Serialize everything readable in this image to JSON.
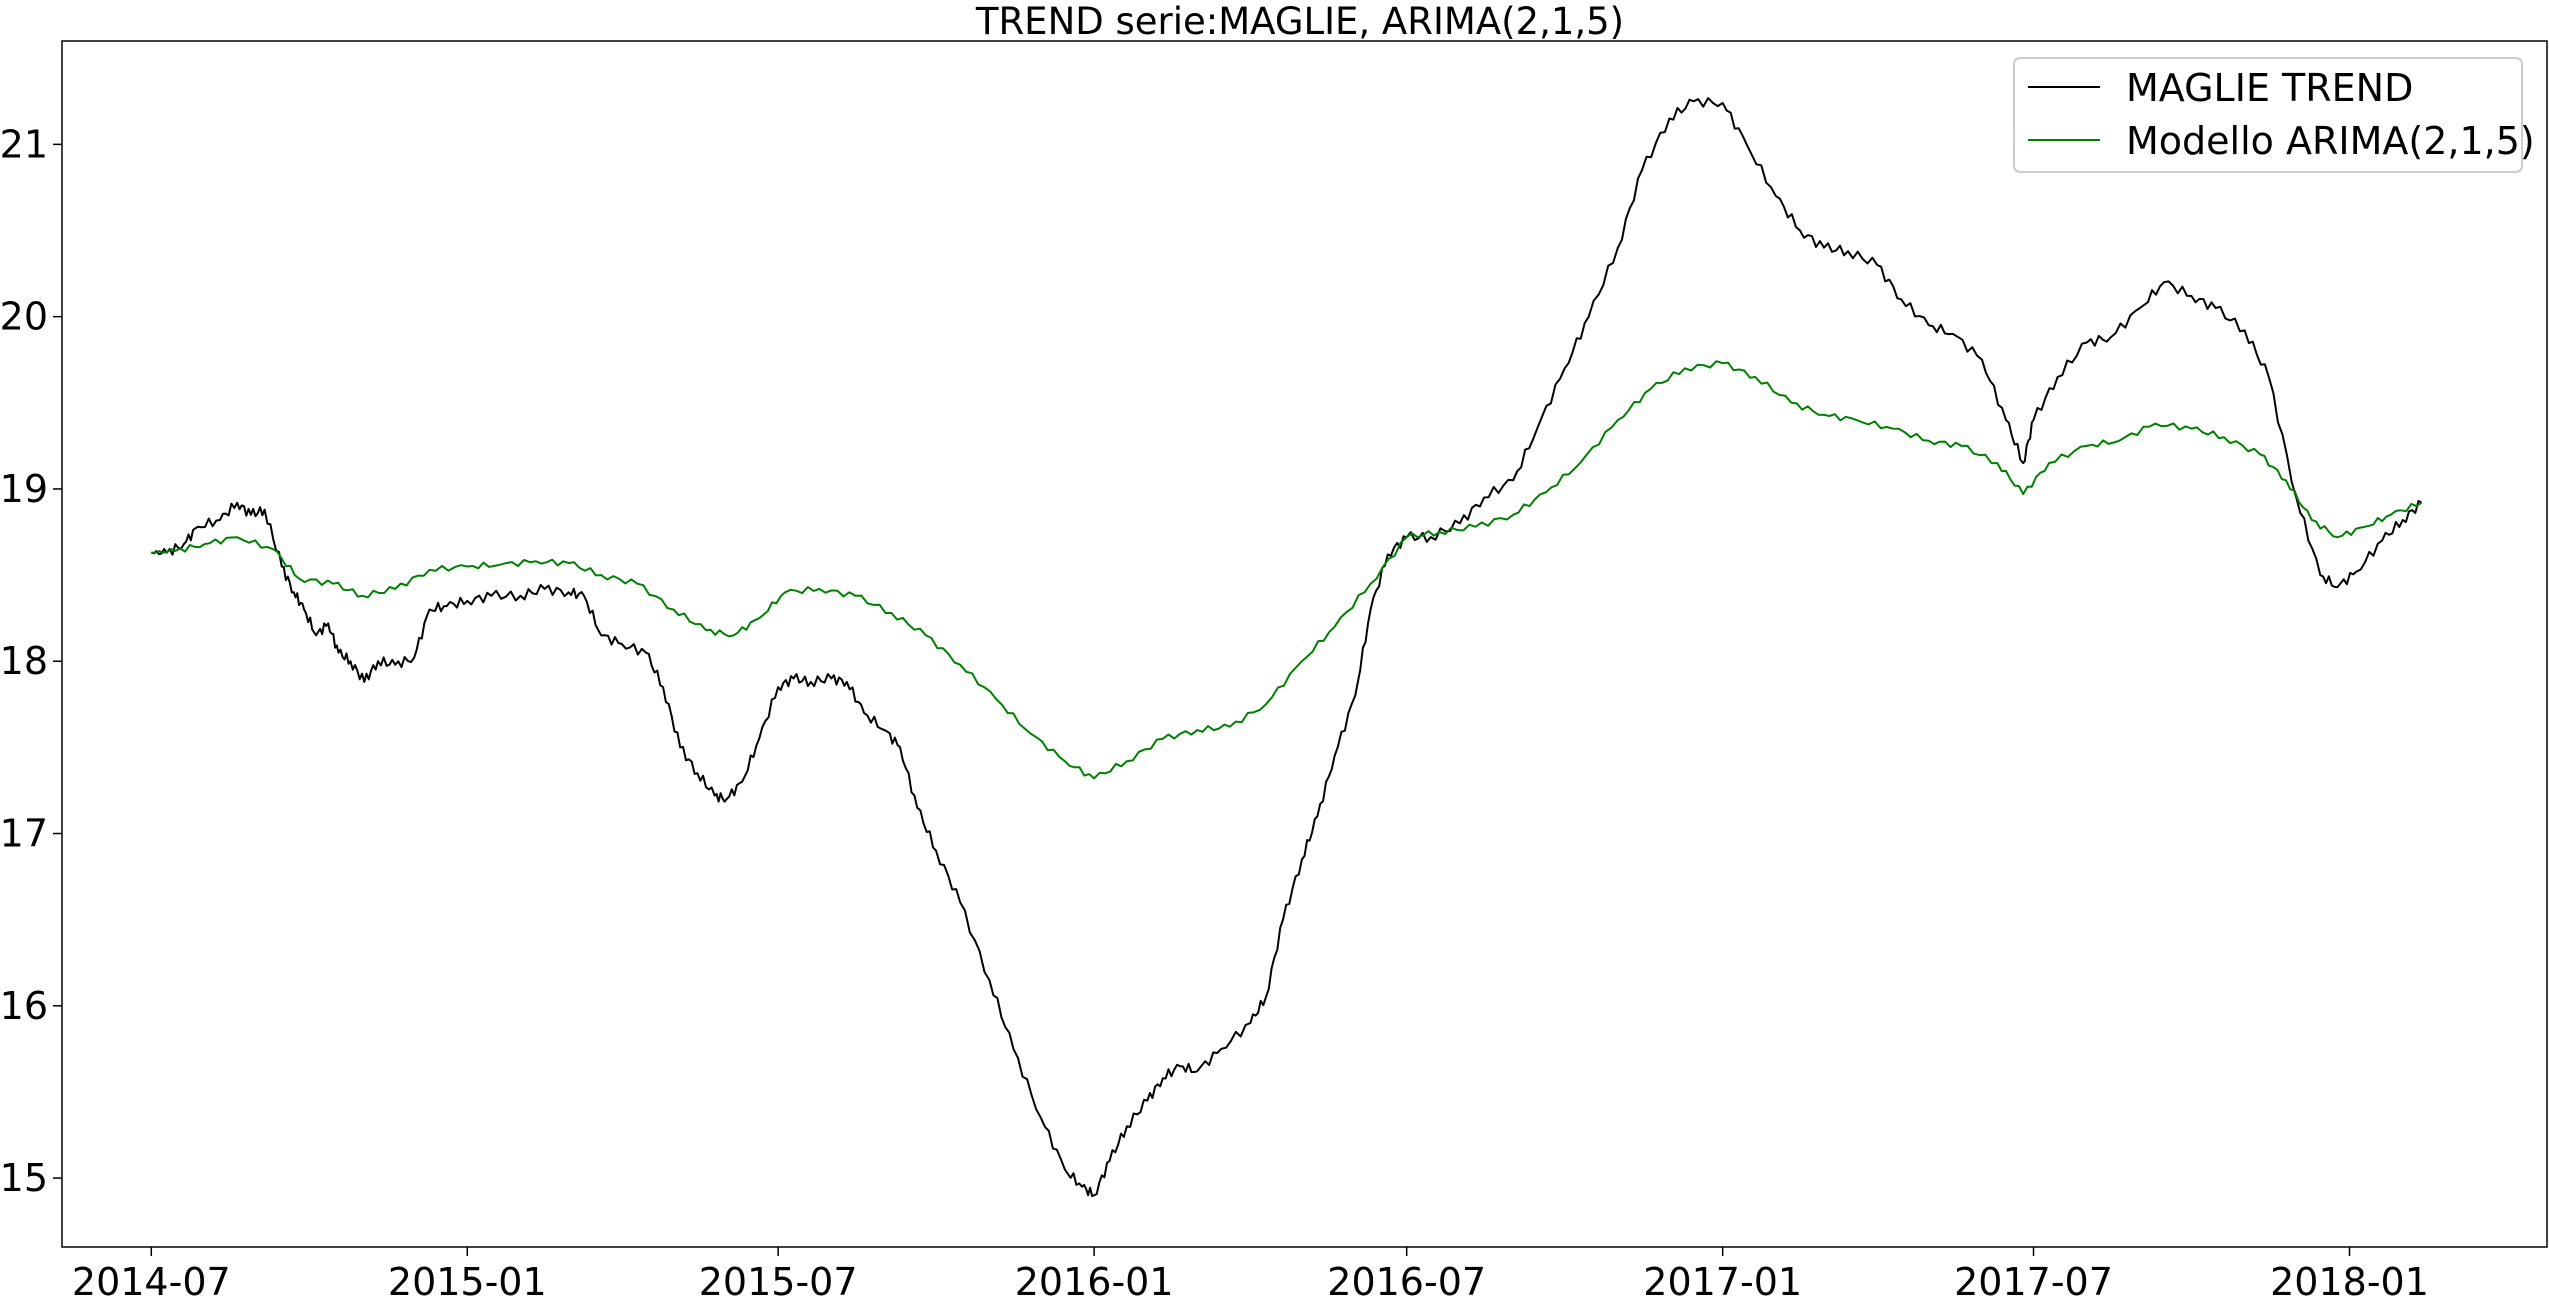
{
  "chart_data": {
    "type": "line",
    "title": "TREND serie:MAGLIE, ARIMA(2,1,5)",
    "xlabel": "",
    "ylabel": "",
    "xlim": [
      "2014-05-10",
      "2018-04-26"
    ],
    "ylim": [
      14.6,
      21.6
    ],
    "x_ticks": [
      "2014-07",
      "2015-01",
      "2015-07",
      "2016-01",
      "2016-07",
      "2017-01",
      "2017-07",
      "2018-01"
    ],
    "y_ticks": [
      15,
      16,
      17,
      18,
      19,
      20,
      21
    ],
    "grid": false,
    "legend_position": "top-right",
    "series": [
      {
        "name": "MAGLIE TREND",
        "color": "#000000",
        "points": [
          [
            "2014-07-01",
            18.63
          ],
          [
            "2014-07-10",
            18.63
          ],
          [
            "2014-07-20",
            18.68
          ],
          [
            "2014-07-28",
            18.78
          ],
          [
            "2014-08-10",
            18.82
          ],
          [
            "2014-08-20",
            18.92
          ],
          [
            "2014-08-28",
            18.85
          ],
          [
            "2014-09-05",
            18.88
          ],
          [
            "2014-09-15",
            18.55
          ],
          [
            "2014-09-22",
            18.4
          ],
          [
            "2014-09-28",
            18.3
          ],
          [
            "2014-10-05",
            18.15
          ],
          [
            "2014-10-12",
            18.22
          ],
          [
            "2014-10-18",
            18.05
          ],
          [
            "2014-10-25",
            18.0
          ],
          [
            "2014-11-02",
            17.88
          ],
          [
            "2014-11-10",
            18.0
          ],
          [
            "2014-11-20",
            17.98
          ],
          [
            "2014-12-01",
            18.02
          ],
          [
            "2014-12-10",
            18.3
          ],
          [
            "2014-12-20",
            18.32
          ],
          [
            "2015-01-01",
            18.35
          ],
          [
            "2015-01-15",
            18.38
          ],
          [
            "2015-02-01",
            18.38
          ],
          [
            "2015-02-15",
            18.42
          ],
          [
            "2015-03-01",
            18.4
          ],
          [
            "2015-03-10",
            18.38
          ],
          [
            "2015-03-20",
            18.15
          ],
          [
            "2015-04-01",
            18.1
          ],
          [
            "2015-04-15",
            18.05
          ],
          [
            "2015-04-25",
            17.85
          ],
          [
            "2015-05-05",
            17.5
          ],
          [
            "2015-05-15",
            17.35
          ],
          [
            "2015-05-25",
            17.22
          ],
          [
            "2015-06-01",
            17.2
          ],
          [
            "2015-06-10",
            17.3
          ],
          [
            "2015-06-20",
            17.55
          ],
          [
            "2015-07-01",
            17.85
          ],
          [
            "2015-07-10",
            17.9
          ],
          [
            "2015-07-20",
            17.88
          ],
          [
            "2015-08-01",
            17.9
          ],
          [
            "2015-08-10",
            17.88
          ],
          [
            "2015-08-20",
            17.7
          ],
          [
            "2015-09-01",
            17.6
          ],
          [
            "2015-09-10",
            17.5
          ],
          [
            "2015-09-20",
            17.15
          ],
          [
            "2015-10-01",
            16.9
          ],
          [
            "2015-10-15",
            16.6
          ],
          [
            "2015-11-01",
            16.15
          ],
          [
            "2015-11-15",
            15.75
          ],
          [
            "2015-12-01",
            15.35
          ],
          [
            "2015-12-15",
            15.05
          ],
          [
            "2015-12-25",
            14.95
          ],
          [
            "2016-01-01",
            14.9
          ],
          [
            "2016-01-10",
            15.1
          ],
          [
            "2016-01-20",
            15.3
          ],
          [
            "2016-02-01",
            15.45
          ],
          [
            "2016-02-10",
            15.58
          ],
          [
            "2016-02-20",
            15.65
          ],
          [
            "2016-03-01",
            15.62
          ],
          [
            "2016-03-15",
            15.75
          ],
          [
            "2016-04-01",
            15.9
          ],
          [
            "2016-04-10",
            16.05
          ],
          [
            "2016-04-20",
            16.5
          ],
          [
            "2016-05-01",
            16.85
          ],
          [
            "2016-05-10",
            17.1
          ],
          [
            "2016-05-20",
            17.45
          ],
          [
            "2016-06-01",
            17.8
          ],
          [
            "2016-06-10",
            18.3
          ],
          [
            "2016-06-20",
            18.62
          ],
          [
            "2016-07-01",
            18.72
          ],
          [
            "2016-07-15",
            18.72
          ],
          [
            "2016-08-01",
            18.8
          ],
          [
            "2016-08-15",
            18.95
          ],
          [
            "2016-09-01",
            19.05
          ],
          [
            "2016-09-15",
            19.35
          ],
          [
            "2016-10-01",
            19.7
          ],
          [
            "2016-10-15",
            20.0
          ],
          [
            "2016-11-01",
            20.4
          ],
          [
            "2016-11-15",
            20.85
          ],
          [
            "2016-12-01",
            21.15
          ],
          [
            "2016-12-15",
            21.25
          ],
          [
            "2017-01-01",
            21.24
          ],
          [
            "2017-01-15",
            21.0
          ],
          [
            "2017-02-01",
            20.7
          ],
          [
            "2017-02-15",
            20.5
          ],
          [
            "2017-03-01",
            20.4
          ],
          [
            "2017-03-15",
            20.38
          ],
          [
            "2017-04-01",
            20.3
          ],
          [
            "2017-04-15",
            20.1
          ],
          [
            "2017-05-01",
            19.95
          ],
          [
            "2017-05-15",
            19.9
          ],
          [
            "2017-06-01",
            19.75
          ],
          [
            "2017-06-15",
            19.4
          ],
          [
            "2017-06-25",
            19.15
          ],
          [
            "2017-07-01",
            19.4
          ],
          [
            "2017-07-15",
            19.65
          ],
          [
            "2017-08-01",
            19.85
          ],
          [
            "2017-08-15",
            19.88
          ],
          [
            "2017-09-01",
            20.05
          ],
          [
            "2017-09-15",
            20.2
          ],
          [
            "2017-10-01",
            20.12
          ],
          [
            "2017-10-15",
            20.05
          ],
          [
            "2017-11-01",
            19.92
          ],
          [
            "2017-11-15",
            19.65
          ],
          [
            "2017-12-01",
            18.95
          ],
          [
            "2017-12-15",
            18.5
          ],
          [
            "2017-12-25",
            18.43
          ],
          [
            "2018-01-05",
            18.52
          ],
          [
            "2018-01-20",
            18.7
          ],
          [
            "2018-02-01",
            18.82
          ],
          [
            "2018-02-12",
            18.92
          ]
        ]
      },
      {
        "name": "Modello ARIMA(2,1,5)",
        "color": "#008000",
        "points": [
          [
            "2014-07-01",
            18.63
          ],
          [
            "2014-07-15",
            18.64
          ],
          [
            "2014-08-01",
            18.68
          ],
          [
            "2014-08-20",
            18.72
          ],
          [
            "2014-09-10",
            18.65
          ],
          [
            "2014-09-25",
            18.48
          ],
          [
            "2014-10-15",
            18.45
          ],
          [
            "2014-11-01",
            18.38
          ],
          [
            "2014-11-20",
            18.42
          ],
          [
            "2014-12-10",
            18.53
          ],
          [
            "2015-01-01",
            18.55
          ],
          [
            "2015-01-20",
            18.56
          ],
          [
            "2015-02-10",
            18.58
          ],
          [
            "2015-03-01",
            18.57
          ],
          [
            "2015-03-20",
            18.5
          ],
          [
            "2015-04-10",
            18.45
          ],
          [
            "2015-05-01",
            18.3
          ],
          [
            "2015-05-20",
            18.18
          ],
          [
            "2015-06-05",
            18.15
          ],
          [
            "2015-06-20",
            18.25
          ],
          [
            "2015-07-05",
            18.4
          ],
          [
            "2015-07-25",
            18.42
          ],
          [
            "2015-08-15",
            18.38
          ],
          [
            "2015-09-05",
            18.28
          ],
          [
            "2015-09-25",
            18.15
          ],
          [
            "2015-10-15",
            17.98
          ],
          [
            "2015-11-05",
            17.78
          ],
          [
            "2015-11-25",
            17.58
          ],
          [
            "2015-12-15",
            17.42
          ],
          [
            "2016-01-01",
            17.32
          ],
          [
            "2016-01-20",
            17.42
          ],
          [
            "2016-02-10",
            17.55
          ],
          [
            "2016-03-01",
            17.6
          ],
          [
            "2016-03-20",
            17.62
          ],
          [
            "2016-04-10",
            17.75
          ],
          [
            "2016-05-01",
            18.0
          ],
          [
            "2016-05-20",
            18.2
          ],
          [
            "2016-06-10",
            18.45
          ],
          [
            "2016-07-01",
            18.72
          ],
          [
            "2016-07-20",
            18.75
          ],
          [
            "2016-08-10",
            18.78
          ],
          [
            "2016-09-01",
            18.85
          ],
          [
            "2016-09-20",
            18.98
          ],
          [
            "2016-10-10",
            19.15
          ],
          [
            "2016-11-01",
            19.4
          ],
          [
            "2016-11-20",
            19.58
          ],
          [
            "2016-12-10",
            19.7
          ],
          [
            "2017-01-01",
            19.73
          ],
          [
            "2017-01-20",
            19.65
          ],
          [
            "2017-02-10",
            19.5
          ],
          [
            "2017-03-01",
            19.43
          ],
          [
            "2017-03-20",
            19.4
          ],
          [
            "2017-04-10",
            19.35
          ],
          [
            "2017-05-01",
            19.28
          ],
          [
            "2017-05-20",
            19.25
          ],
          [
            "2017-06-10",
            19.15
          ],
          [
            "2017-06-25",
            18.97
          ],
          [
            "2017-07-10",
            19.15
          ],
          [
            "2017-08-01",
            19.25
          ],
          [
            "2017-08-20",
            19.28
          ],
          [
            "2017-09-10",
            19.38
          ],
          [
            "2017-10-01",
            19.35
          ],
          [
            "2017-10-20",
            19.3
          ],
          [
            "2017-11-10",
            19.2
          ],
          [
            "2017-11-25",
            19.05
          ],
          [
            "2017-12-10",
            18.82
          ],
          [
            "2017-12-25",
            18.72
          ],
          [
            "2018-01-10",
            18.78
          ],
          [
            "2018-01-25",
            18.85
          ],
          [
            "2018-02-12",
            18.92
          ]
        ]
      }
    ]
  }
}
